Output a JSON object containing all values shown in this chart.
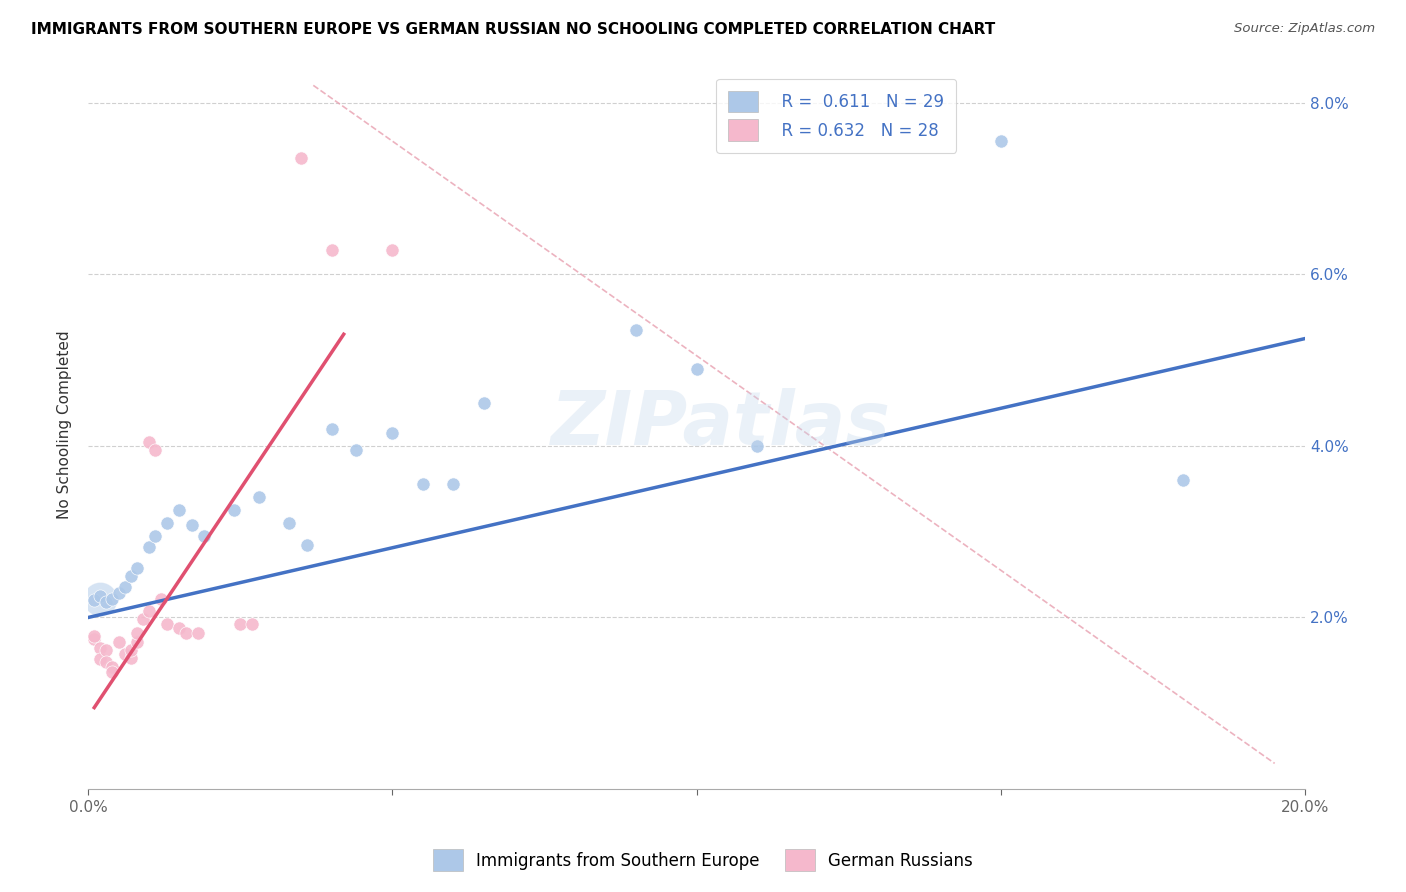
{
  "title": "IMMIGRANTS FROM SOUTHERN EUROPE VS GERMAN RUSSIAN NO SCHOOLING COMPLETED CORRELATION CHART",
  "source": "Source: ZipAtlas.com",
  "ylabel": "No Schooling Completed",
  "watermark": "ZIPatlas",
  "xlim": [
    0.0,
    0.2
  ],
  "ylim": [
    0.0,
    0.085
  ],
  "xtick_positions": [
    0.0,
    0.05,
    0.1,
    0.15,
    0.2
  ],
  "xtick_labels": [
    "0.0%",
    "",
    "",
    "",
    "20.0%"
  ],
  "ytick_positions": [
    0.02,
    0.04,
    0.06,
    0.08
  ],
  "ytick_labels": [
    "2.0%",
    "4.0%",
    "6.0%",
    "8.0%"
  ],
  "blue_R": "0.611",
  "blue_N": "29",
  "pink_R": "0.632",
  "pink_N": "28",
  "blue_color": "#adc8e8",
  "pink_color": "#f5b8cc",
  "blue_line_color": "#4472c4",
  "pink_line_color": "#e05070",
  "diag_line_color": "#e8a0b0",
  "blue_points": [
    [
      0.001,
      0.022
    ],
    [
      0.002,
      0.0225
    ],
    [
      0.003,
      0.0218
    ],
    [
      0.004,
      0.0222
    ],
    [
      0.005,
      0.0228
    ],
    [
      0.006,
      0.0235
    ],
    [
      0.007,
      0.0248
    ],
    [
      0.008,
      0.0258
    ],
    [
      0.01,
      0.0282
    ],
    [
      0.011,
      0.0295
    ],
    [
      0.013,
      0.031
    ],
    [
      0.015,
      0.0325
    ],
    [
      0.017,
      0.0308
    ],
    [
      0.019,
      0.0295
    ],
    [
      0.024,
      0.0325
    ],
    [
      0.028,
      0.034
    ],
    [
      0.033,
      0.031
    ],
    [
      0.036,
      0.0285
    ],
    [
      0.04,
      0.042
    ],
    [
      0.044,
      0.0395
    ],
    [
      0.05,
      0.0415
    ],
    [
      0.055,
      0.0355
    ],
    [
      0.06,
      0.0355
    ],
    [
      0.065,
      0.045
    ],
    [
      0.09,
      0.0535
    ],
    [
      0.1,
      0.049
    ],
    [
      0.11,
      0.04
    ],
    [
      0.15,
      0.0755
    ],
    [
      0.18,
      0.036
    ]
  ],
  "pink_points": [
    [
      0.001,
      0.0175
    ],
    [
      0.001,
      0.0178
    ],
    [
      0.002,
      0.0165
    ],
    [
      0.002,
      0.0152
    ],
    [
      0.003,
      0.0162
    ],
    [
      0.003,
      0.0148
    ],
    [
      0.004,
      0.0142
    ],
    [
      0.004,
      0.0136
    ],
    [
      0.005,
      0.0172
    ],
    [
      0.006,
      0.0158
    ],
    [
      0.007,
      0.0153
    ],
    [
      0.007,
      0.0162
    ],
    [
      0.008,
      0.0172
    ],
    [
      0.008,
      0.0182
    ],
    [
      0.009,
      0.0198
    ],
    [
      0.01,
      0.0208
    ],
    [
      0.01,
      0.0405
    ],
    [
      0.011,
      0.0395
    ],
    [
      0.012,
      0.0222
    ],
    [
      0.013,
      0.0192
    ],
    [
      0.015,
      0.0188
    ],
    [
      0.016,
      0.0182
    ],
    [
      0.018,
      0.0182
    ],
    [
      0.025,
      0.0192
    ],
    [
      0.027,
      0.0192
    ],
    [
      0.035,
      0.0735
    ],
    [
      0.04,
      0.0628
    ],
    [
      0.05,
      0.0628
    ]
  ],
  "blue_trend_x": [
    0.0,
    0.2
  ],
  "blue_trend_y": [
    0.02,
    0.0525
  ],
  "pink_trend_x": [
    0.001,
    0.042
  ],
  "pink_trend_y": [
    0.0095,
    0.053
  ],
  "diag_trend_x": [
    0.037,
    0.195
  ],
  "diag_trend_y": [
    0.082,
    0.003
  ]
}
